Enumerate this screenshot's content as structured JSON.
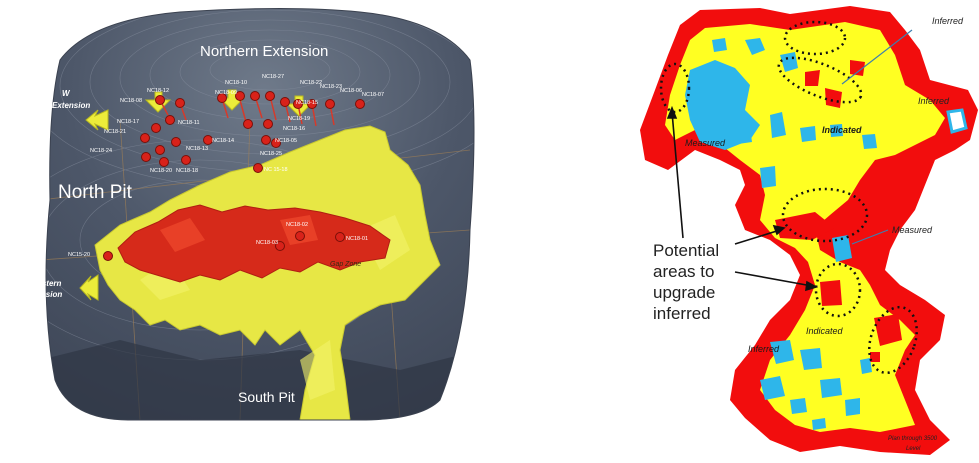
{
  "left_figure": {
    "labels": {
      "northern_extension": "Northern Extension",
      "nw_extension_a": "W",
      "nw_extension_b": "Extension",
      "north_pit": "North Pit",
      "western_extension_a": "Western",
      "western_extension_b": "Extension",
      "south_pit": "South Pit",
      "gap_zone": "Gap Zone"
    },
    "drillholes": [
      "NC18-10",
      "NC18-09",
      "NC18-12",
      "NC18-08",
      "NC18-17",
      "NC18-21",
      "NC18-24",
      "NC18-11",
      "NC18-13",
      "NC18-20",
      "NC18-18",
      "NC18-14",
      "NC18-16",
      "NC18-27",
      "NC18-22",
      "NC18-23",
      "NC18-06",
      "NC18-07",
      "NC18-25",
      "NC18-19",
      "NC18-05",
      "NC18-15",
      "NC 15-18",
      "NC15-20",
      "NC18-03",
      "NC18-02",
      "NC18-01"
    ]
  },
  "right_figure": {
    "labels": {
      "inferred_top": "Inferred",
      "inferred_right": "Inferred",
      "measured_left": "Measured",
      "indicated_top": "Indicated",
      "measured_right": "Measured",
      "indicated_bottom": "Indicated",
      "inferred_bottom": "Inferred",
      "plan_line1": "Plan through 3500",
      "plan_line2": "Level"
    },
    "annotation_lines": [
      "Potential",
      "areas to",
      "upgrade",
      "inferred"
    ]
  }
}
